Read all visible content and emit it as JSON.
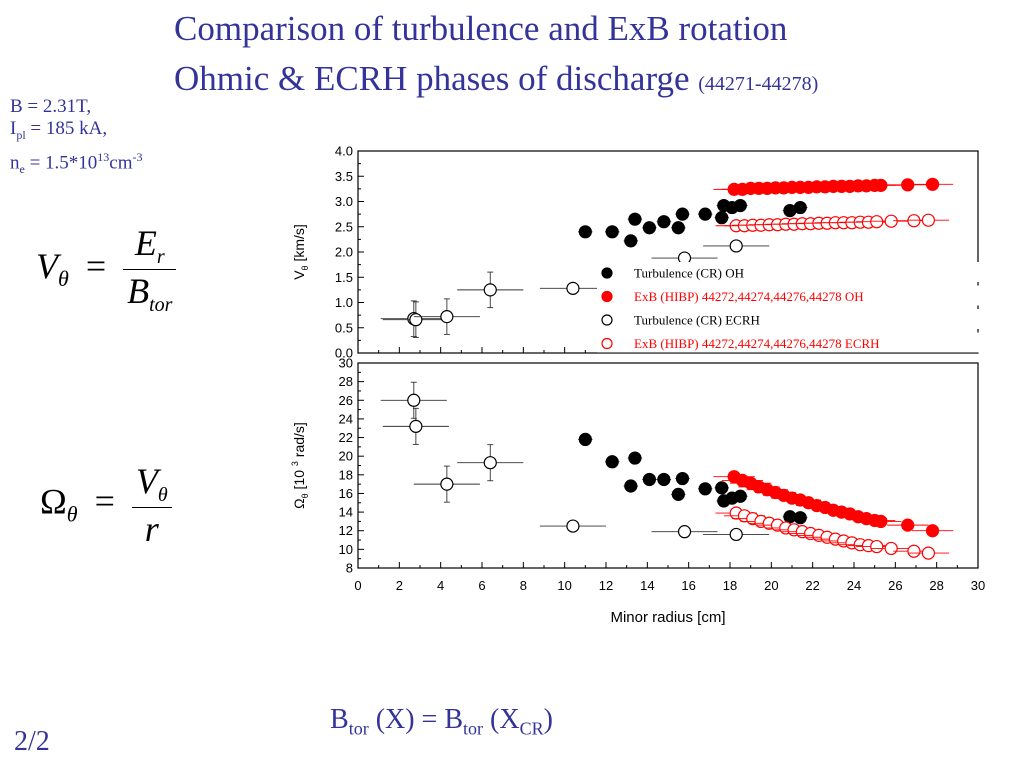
{
  "slide": {
    "title_line1": "Comparison of turbulence and ExB rotation",
    "title_line2": "Ohmic & ECRH phases of discharge",
    "title_shots": "(44271-44278)",
    "params": {
      "b_field": "B = 2.31T,",
      "ipl_prefix": "I",
      "ipl_sub": "pl",
      "ipl_value": " = 185 kA,",
      "ne_prefix": "n",
      "ne_sub": "e",
      "ne_value": " = 1.5*10",
      "ne_exp": "13",
      "ne_unit": "cm",
      "ne_unit_exp": "-3"
    },
    "formula1": {
      "lhs": "V",
      "lhs_sub": "θ",
      "eq": "=",
      "num": "E",
      "num_sub": "r",
      "den": "B",
      "den_sub": "tor"
    },
    "formula2": {
      "lhs": "Ω",
      "lhs_sub": "θ",
      "eq": "=",
      "num": "V",
      "num_sub": "θ",
      "den": "r"
    },
    "btor": {
      "a": "B",
      "a_sub": "tor",
      "b": " (X) = B",
      "b_sub": "tor",
      "c": " (X",
      "c_sub": "CR",
      "d": ")"
    },
    "page": "2/2"
  },
  "chart_data": [
    {
      "type": "scatter",
      "ylabel": "V  [km/s]",
      "ylabel_sub": "θ",
      "ylim": [
        0,
        4
      ],
      "yticks": [
        "0.0",
        "0.5",
        "1.0",
        "1.5",
        "2.0",
        "2.5",
        "3.0",
        "3.5",
        "4.0"
      ],
      "xlim": [
        0,
        30
      ],
      "legend": {
        "placement": "lower-right",
        "entries": [
          "Turbulence (CR) OH",
          "ExB (HIBP) 44272,44274,44276,44278 OH",
          "Turbulence (CR) ECRH",
          "ExB (HIBP) 44272,44274,44276,44278 ECRH"
        ]
      },
      "series": [
        {
          "name": "Turbulence (CR) OH",
          "color": "#000000",
          "filled": true,
          "x": [
            11.0,
            12.3,
            13.2,
            13.4,
            14.1,
            14.8,
            15.5,
            15.7,
            16.8,
            17.6,
            17.7,
            18.1,
            18.5,
            20.9,
            21.4
          ],
          "y": [
            2.4,
            2.4,
            2.22,
            2.65,
            2.48,
            2.6,
            2.48,
            2.75,
            2.75,
            2.68,
            2.92,
            2.88,
            2.92,
            2.82,
            2.88
          ]
        },
        {
          "name": "ExB (HIBP) 44272,44274,44276,44278 OH",
          "color": "#ff0000",
          "filled": true,
          "x": [
            18.2,
            18.6,
            19.0,
            19.4,
            19.8,
            20.2,
            20.6,
            21.0,
            21.4,
            21.8,
            22.2,
            22.6,
            23.0,
            23.4,
            23.8,
            24.2,
            24.6,
            25.0,
            25.3,
            26.6,
            27.8
          ],
          "y": [
            3.24,
            3.24,
            3.26,
            3.26,
            3.26,
            3.27,
            3.27,
            3.28,
            3.28,
            3.28,
            3.29,
            3.29,
            3.3,
            3.3,
            3.3,
            3.31,
            3.31,
            3.32,
            3.32,
            3.33,
            3.34
          ]
        },
        {
          "name": "Turbulence (CR) ECRH",
          "color": "#000000",
          "filled": false,
          "x": [
            2.7,
            2.8,
            4.3,
            6.4,
            10.4,
            15.8,
            18.3
          ],
          "y": [
            0.68,
            0.66,
            0.72,
            1.25,
            1.28,
            1.88,
            2.12
          ]
        },
        {
          "name": "ExB (HIBP) 44272,44274,44276,44278 ECRH",
          "color": "#ff0000",
          "filled": false,
          "x": [
            18.3,
            18.7,
            19.1,
            19.5,
            19.9,
            20.3,
            20.7,
            21.1,
            21.5,
            21.9,
            22.3,
            22.7,
            23.1,
            23.5,
            23.9,
            24.3,
            24.7,
            25.1,
            25.8,
            26.9,
            27.6
          ],
          "y": [
            2.52,
            2.52,
            2.53,
            2.53,
            2.54,
            2.54,
            2.55,
            2.55,
            2.56,
            2.56,
            2.57,
            2.57,
            2.58,
            2.58,
            2.58,
            2.59,
            2.59,
            2.6,
            2.61,
            2.62,
            2.63
          ]
        }
      ]
    },
    {
      "type": "scatter",
      "xlabel": "Minor radius [cm]",
      "ylabel": "Ω  [10  rad/s]",
      "ylabel_sub": "θ",
      "ylabel_sup": "3",
      "xlim": [
        0,
        30
      ],
      "ylim": [
        8,
        30
      ],
      "xticks": [
        "0",
        "2",
        "4",
        "6",
        "8",
        "10",
        "12",
        "14",
        "16",
        "18",
        "20",
        "22",
        "24",
        "26",
        "28",
        "30"
      ],
      "yticks": [
        "8",
        "10",
        "12",
        "14",
        "16",
        "18",
        "20",
        "22",
        "24",
        "26",
        "28",
        "30"
      ],
      "series": [
        {
          "name": "Turbulence (CR) OH",
          "color": "#000000",
          "filled": true,
          "x": [
            11.0,
            12.3,
            13.2,
            13.4,
            14.1,
            14.8,
            15.5,
            15.7,
            16.8,
            17.6,
            17.7,
            18.1,
            18.5,
            20.9,
            21.4
          ],
          "y": [
            21.8,
            19.4,
            16.8,
            19.8,
            17.5,
            17.5,
            15.9,
            17.6,
            16.5,
            16.6,
            15.2,
            15.5,
            15.7,
            13.5,
            13.4
          ]
        },
        {
          "name": "ExB (HIBP) 44272,44274,44276,44278 OH",
          "color": "#ff0000",
          "filled": true,
          "x": [
            18.2,
            18.6,
            19.0,
            19.4,
            19.8,
            20.2,
            20.6,
            21.0,
            21.4,
            21.8,
            22.2,
            22.6,
            23.0,
            23.4,
            23.8,
            24.2,
            24.6,
            25.0,
            25.3,
            26.6,
            27.8
          ],
          "y": [
            17.8,
            17.4,
            17.1,
            16.7,
            16.4,
            16.1,
            15.8,
            15.5,
            15.3,
            15.0,
            14.7,
            14.5,
            14.2,
            14.0,
            13.8,
            13.5,
            13.3,
            13.1,
            13.0,
            12.6,
            12.0
          ]
        },
        {
          "name": "Turbulence (CR) ECRH",
          "color": "#000000",
          "filled": false,
          "x": [
            2.7,
            2.8,
            4.3,
            6.4,
            10.4,
            15.8,
            18.3
          ],
          "y": [
            26.0,
            23.2,
            17.0,
            19.3,
            12.5,
            11.9,
            11.6
          ]
        },
        {
          "name": "ExB (HIBP) 44272,44274,44276,44278 ECRH",
          "color": "#ff0000",
          "filled": false,
          "x": [
            18.3,
            18.7,
            19.1,
            19.5,
            19.9,
            20.3,
            20.7,
            21.1,
            21.5,
            21.9,
            22.3,
            22.7,
            23.1,
            23.5,
            23.9,
            24.3,
            24.7,
            25.1,
            25.8,
            26.9,
            27.6
          ],
          "y": [
            13.9,
            13.6,
            13.3,
            13.0,
            12.8,
            12.6,
            12.3,
            12.1,
            11.9,
            11.7,
            11.5,
            11.3,
            11.1,
            10.9,
            10.7,
            10.5,
            10.4,
            10.3,
            10.1,
            9.8,
            9.6
          ]
        }
      ]
    }
  ]
}
